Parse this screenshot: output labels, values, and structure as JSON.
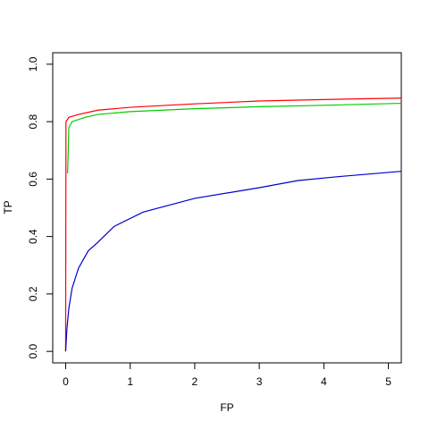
{
  "chart_data": {
    "type": "line",
    "x_label": "FP",
    "y_label": "TP",
    "xlim": [
      -0.2,
      5.2
    ],
    "ylim": [
      -0.04,
      1.04
    ],
    "xticks": [
      0,
      1,
      2,
      3,
      4,
      5
    ],
    "yticks": [
      {
        "value": 0,
        "label": "0.0"
      },
      0.2,
      0.4,
      0.6,
      0.8,
      {
        "value": 1,
        "label": "1.0"
      }
    ],
    "series": [
      {
        "color": "#ff0000",
        "x": [
          0,
          0.005,
          0.05,
          0.2,
          0.5,
          1,
          2,
          3,
          4,
          5.2
        ],
        "values": [
          0,
          0.8,
          0.815,
          0.825,
          0.84,
          0.85,
          0.862,
          0.872,
          0.877,
          0.882
        ]
      },
      {
        "color": "#00cc00",
        "x": [
          0.03,
          0.05,
          0.1,
          0.3,
          0.5,
          1,
          2,
          3,
          4,
          5.2
        ],
        "values": [
          0.62,
          0.78,
          0.8,
          0.815,
          0.825,
          0.835,
          0.845,
          0.852,
          0.857,
          0.864
        ]
      },
      {
        "color": "#0000cc",
        "x": [
          0,
          0.02,
          0.05,
          0.1,
          0.2,
          0.35,
          0.5,
          0.75,
          1.2,
          2,
          3,
          3.6,
          4.2,
          5.2
        ],
        "values": [
          0,
          0.08,
          0.15,
          0.22,
          0.29,
          0.35,
          0.38,
          0.435,
          0.485,
          0.533,
          0.57,
          0.595,
          0.608,
          0.627
        ]
      }
    ]
  }
}
